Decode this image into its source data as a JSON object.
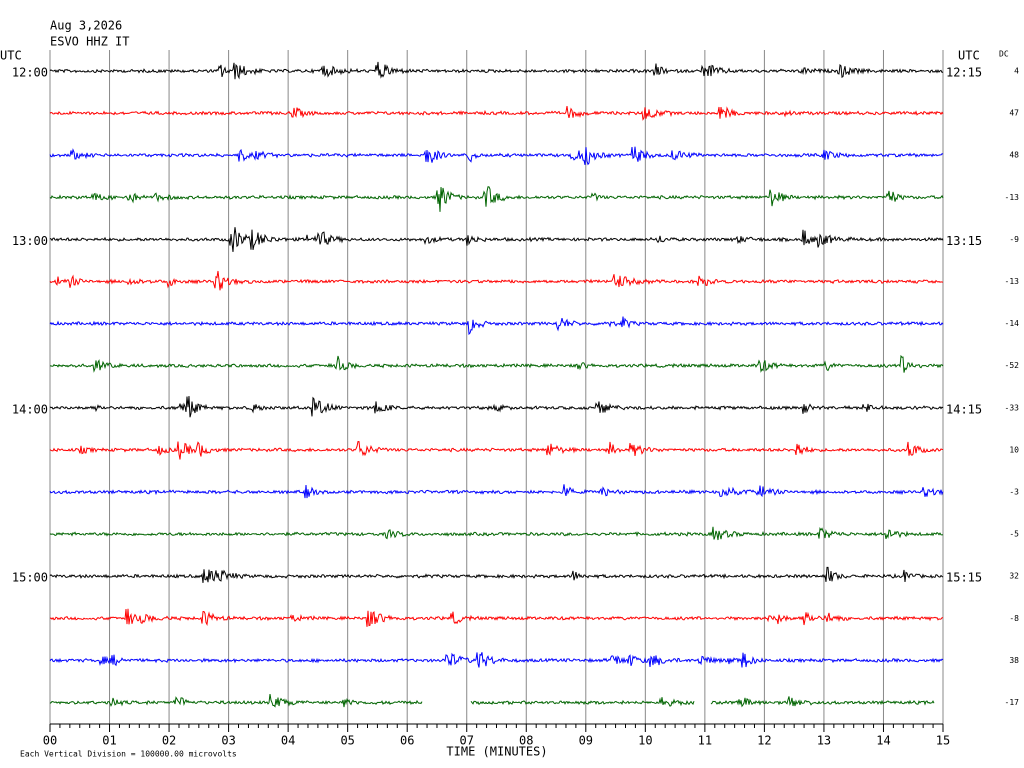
{
  "header": {
    "date": "Aug 3,2026",
    "station": "ESVO HHZ IT"
  },
  "left_title": "UTC",
  "right_title": "UTC",
  "dc_title": "DC",
  "rows": [
    {
      "left": "12:00",
      "right": "12:15",
      "dc": 4,
      "color": "#000000"
    },
    {
      "left": null,
      "right": null,
      "dc": 47,
      "color": "#ff0000"
    },
    {
      "left": null,
      "right": null,
      "dc": 48,
      "color": "#0000ff"
    },
    {
      "left": null,
      "right": null,
      "dc": -13,
      "color": "#006400"
    },
    {
      "left": "13:00",
      "right": "13:15",
      "dc": -9,
      "color": "#000000"
    },
    {
      "left": null,
      "right": null,
      "dc": -13,
      "color": "#ff0000"
    },
    {
      "left": null,
      "right": null,
      "dc": -14,
      "color": "#0000ff"
    },
    {
      "left": null,
      "right": null,
      "dc": -52,
      "color": "#006400"
    },
    {
      "left": "14:00",
      "right": "14:15",
      "dc": -33,
      "color": "#000000"
    },
    {
      "left": null,
      "right": null,
      "dc": 10,
      "color": "#ff0000"
    },
    {
      "left": null,
      "right": null,
      "dc": -3,
      "color": "#0000ff"
    },
    {
      "left": null,
      "right": null,
      "dc": -5,
      "color": "#006400"
    },
    {
      "left": "15:00",
      "right": "15:15",
      "dc": 32,
      "color": "#000000"
    },
    {
      "left": null,
      "right": null,
      "dc": -8,
      "color": "#ff0000"
    },
    {
      "left": null,
      "right": null,
      "dc": 38,
      "color": "#0000ff"
    },
    {
      "left": null,
      "right": null,
      "dc": -17,
      "color": "#006400"
    }
  ],
  "x_axis": {
    "title": "TIME (MINUTES)",
    "ticks": [
      "00",
      "01",
      "02",
      "03",
      "04",
      "05",
      "06",
      "07",
      "08",
      "09",
      "10",
      "11",
      "12",
      "13",
      "14",
      "15"
    ]
  },
  "footer": "Each Vertical Division = 100000.00 microvolts"
}
